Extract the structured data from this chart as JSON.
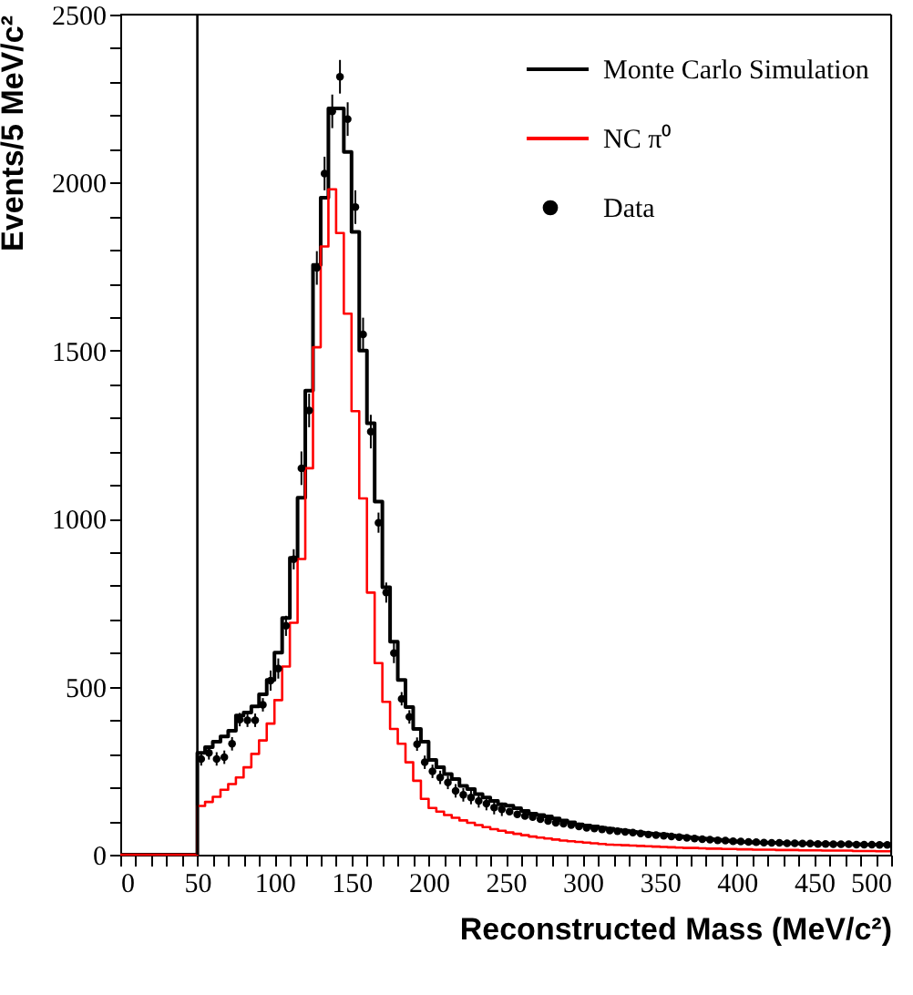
{
  "chart_data": {
    "type": "histogram",
    "xlabel": "Reconstructed Mass (MeV/c²)",
    "ylabel": "Events/5 MeV/c²",
    "bins": [
      0,
      5,
      10,
      15,
      20,
      25,
      30,
      35,
      40,
      45,
      50,
      55,
      60,
      65,
      70,
      75,
      80,
      85,
      90,
      95,
      100,
      105,
      110,
      115,
      120,
      125,
      130,
      135,
      140,
      145,
      150,
      155,
      160,
      165,
      170,
      175,
      180,
      185,
      190,
      195,
      200,
      205,
      210,
      215,
      220,
      225,
      230,
      235,
      240,
      245,
      250,
      255,
      260,
      265,
      270,
      275,
      280,
      285,
      290,
      295,
      300,
      305,
      310,
      315,
      320,
      325,
      330,
      335,
      340,
      345,
      350,
      355,
      360,
      365,
      370,
      375,
      380,
      385,
      390,
      395,
      400,
      405,
      410,
      415,
      420,
      425,
      430,
      435,
      440,
      445,
      450,
      455,
      460,
      465,
      470,
      475,
      480,
      485,
      490,
      495,
      500
    ],
    "series": [
      {
        "name": "Monte Carlo Simulation",
        "color": "#000000",
        "values": [
          0,
          0,
          0,
          0,
          0,
          0,
          0,
          0,
          0,
          0,
          303,
          320,
          336,
          352,
          369,
          414,
          423,
          441,
          477,
          520,
          601,
          704,
          883,
          1062,
          1381,
          1755,
          1955,
          2221,
          2221,
          2091,
          1853,
          1500,
          1284,
          1051,
          796,
          634,
          520,
          439,
          374,
          336,
          282,
          260,
          240,
          225,
          205,
          195,
          180,
          170,
          160,
          150,
          146,
          138,
          130,
          122,
          118,
          114,
          108,
          102,
          96,
          90,
          87,
          84,
          80,
          77,
          74,
          71,
          68,
          66,
          63,
          61,
          60,
          57,
          55,
          52,
          50,
          48,
          46,
          44,
          42,
          40,
          38,
          37,
          36,
          36,
          35,
          35,
          34,
          34,
          33,
          33,
          32,
          32,
          32,
          31,
          31,
          31,
          30,
          30,
          30,
          30
        ]
      },
      {
        "name": "NC π⁰",
        "color": "#ff0000",
        "values": [
          0,
          0,
          0,
          0,
          0,
          0,
          0,
          0,
          0,
          0,
          145,
          157,
          172,
          193,
          210,
          230,
          260,
          300,
          340,
          390,
          460,
          560,
          690,
          880,
          1150,
          1510,
          1810,
          1980,
          1850,
          1610,
          1320,
          1060,
          780,
          570,
          455,
          374,
          330,
          275,
          220,
          166,
          139,
          128,
          118,
          110,
          102,
          95,
          88,
          82,
          76,
          71,
          66,
          62,
          58,
          54,
          51,
          48,
          45,
          42,
          40,
          38,
          36,
          34,
          32,
          30,
          29,
          28,
          27,
          26,
          25,
          24,
          23,
          22,
          21,
          20,
          20,
          19,
          18,
          18,
          17,
          17,
          16,
          16,
          15,
          15,
          15,
          14,
          14,
          14,
          13,
          13,
          13,
          12,
          12,
          12,
          12,
          11,
          11,
          11,
          10,
          10
        ]
      },
      {
        "name": "Data",
        "type": "scatter",
        "color": "#000000",
        "marker": "circle",
        "x": [
          52.5,
          57.5,
          62.5,
          67.5,
          72.5,
          77.5,
          82.5,
          87.5,
          92.5,
          97.5,
          102.5,
          107.5,
          112.5,
          117.5,
          122.5,
          127.5,
          132.5,
          137.5,
          142.5,
          147.5,
          152.5,
          157.5,
          162.5,
          167.5,
          172.5,
          177.5,
          182.5,
          187.5,
          192.5,
          197.5,
          202.5,
          207.5,
          212.5,
          217.5,
          222.5,
          227.5,
          232.5,
          237.5,
          242.5,
          247.5,
          252.5,
          257.5,
          262.5,
          267.5,
          272.5,
          277.5,
          282.5,
          287.5,
          292.5,
          297.5,
          302.5,
          307.5,
          312.5,
          317.5,
          322.5,
          327.5,
          332.5,
          337.5,
          342.5,
          347.5,
          352.5,
          357.5,
          362.5,
          367.5,
          372.5,
          377.5,
          382.5,
          387.5,
          392.5,
          397.5,
          402.5,
          407.5,
          412.5,
          417.5,
          422.5,
          427.5,
          432.5,
          437.5,
          442.5,
          447.5,
          452.5,
          457.5,
          462.5,
          467.5,
          472.5,
          477.5,
          482.5,
          487.5,
          492.5,
          497.5
        ],
        "values": [
          285,
          303,
          285,
          290,
          330,
          402,
          400,
          400,
          446,
          518,
          554,
          681,
          879,
          1150,
          1322,
          1746,
          2027,
          2212,
          2315,
          2189,
          1927,
          1548,
          1259,
          988,
          780,
          600,
          464,
          410,
          329,
          275,
          248,
          230,
          215,
          190,
          178,
          170,
          160,
          152,
          140,
          135,
          128,
          120,
          115,
          112,
          106,
          100,
          95,
          92,
          88,
          84,
          80,
          78,
          75,
          72,
          70,
          68,
          66,
          63,
          60,
          58,
          56,
          54,
          52,
          50,
          48,
          46,
          45,
          43,
          42,
          40,
          39,
          38,
          37,
          36,
          35,
          35,
          34,
          34,
          33,
          33,
          32,
          32,
          31,
          31,
          31,
          30,
          30,
          30,
          29,
          29
        ],
        "errors": [
          20,
          20,
          20,
          20,
          20,
          20,
          20,
          20,
          20,
          30,
          30,
          30,
          30,
          50,
          50,
          50,
          50,
          50,
          50,
          50,
          50,
          50,
          50,
          30,
          30,
          30,
          20,
          20,
          20,
          20,
          20,
          20,
          20,
          20,
          20,
          20,
          20,
          20,
          20,
          20,
          null,
          null,
          null,
          null,
          null,
          null,
          null,
          null,
          null,
          null,
          null,
          null,
          null,
          null,
          null,
          null,
          null,
          null,
          null,
          null,
          null,
          null,
          null,
          null,
          null,
          null,
          null,
          null,
          null,
          null,
          null,
          null,
          null,
          null,
          null,
          null,
          null,
          null,
          null,
          null,
          null,
          null,
          null,
          null,
          null,
          null,
          null,
          null,
          null,
          null
        ]
      }
    ],
    "xlim": [
      0,
      500
    ],
    "ylim": [
      0,
      2500
    ],
    "xticks": [
      0,
      {
        "value": 10,
        "label": null
      },
      {
        "value": 20,
        "label": null
      },
      {
        "value": 30,
        "label": null
      },
      {
        "value": 40,
        "label": null
      },
      50,
      {
        "value": 60,
        "label": null
      },
      {
        "value": 70,
        "label": null
      },
      {
        "value": 80,
        "label": null
      },
      {
        "value": 90,
        "label": null
      },
      100,
      {
        "value": 110,
        "label": null
      },
      {
        "value": 120,
        "label": null
      },
      {
        "value": 130,
        "label": null
      },
      {
        "value": 140,
        "label": null
      },
      150,
      {
        "value": 160,
        "label": null
      },
      {
        "value": 170,
        "label": null
      },
      {
        "value": 180,
        "label": null
      },
      {
        "value": 190,
        "label": null
      },
      200,
      {
        "value": 210,
        "label": null
      },
      {
        "value": 220,
        "label": null
      },
      {
        "value": 230,
        "label": null
      },
      {
        "value": 240,
        "label": null
      },
      250,
      {
        "value": 260,
        "label": null
      },
      {
        "value": 270,
        "label": null
      },
      {
        "value": 280,
        "label": null
      },
      {
        "value": 290,
        "label": null
      },
      300,
      {
        "value": 310,
        "label": null
      },
      {
        "value": 320,
        "label": null
      },
      {
        "value": 330,
        "label": null
      },
      {
        "value": 340,
        "label": null
      },
      350,
      {
        "value": 360,
        "label": null
      },
      {
        "value": 370,
        "label": null
      },
      {
        "value": 380,
        "label": null
      },
      {
        "value": 390,
        "label": null
      },
      400,
      {
        "value": 410,
        "label": null
      },
      {
        "value": 420,
        "label": null
      },
      {
        "value": 430,
        "label": null
      },
      {
        "value": 440,
        "label": null
      },
      450,
      {
        "value": 460,
        "label": null
      },
      {
        "value": 470,
        "label": null
      },
      {
        "value": 480,
        "label": null
      },
      {
        "value": 490,
        "label": null
      },
      500
    ],
    "yticks": [
      0,
      {
        "value": 100,
        "label": null
      },
      {
        "value": 200,
        "label": null
      },
      {
        "value": 300,
        "label": null
      },
      {
        "value": 400,
        "label": null
      },
      500,
      {
        "value": 600,
        "label": null
      },
      {
        "value": 700,
        "label": null
      },
      {
        "value": 800,
        "label": null
      },
      {
        "value": 900,
        "label": null
      },
      1000,
      {
        "value": 1100,
        "label": null
      },
      {
        "value": 1200,
        "label": null
      },
      {
        "value": 1300,
        "label": null
      },
      {
        "value": 1400,
        "label": null
      },
      1500,
      {
        "value": 1600,
        "label": null
      },
      {
        "value": 1700,
        "label": null
      },
      {
        "value": 1800,
        "label": null
      },
      {
        "value": 1900,
        "label": null
      },
      2000,
      {
        "value": 2100,
        "label": null
      },
      {
        "value": 2200,
        "label": null
      },
      {
        "value": 2300,
        "label": null
      },
      {
        "value": 2400,
        "label": null
      },
      2500
    ],
    "ref_lines": [
      {
        "axis": "x",
        "value": 50,
        "label": null,
        "color": "#000000"
      }
    ],
    "grid": false,
    "legend": "top right"
  }
}
